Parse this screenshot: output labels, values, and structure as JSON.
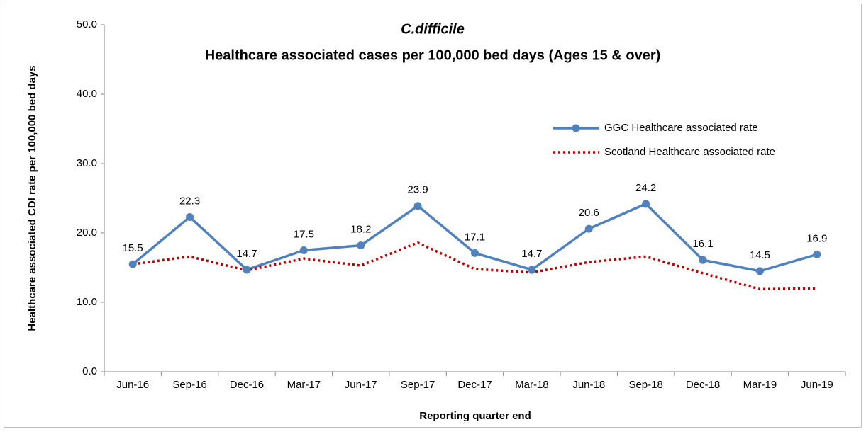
{
  "chart_data": {
    "type": "line",
    "title": "C.difficile",
    "subtitle": "Healthcare associated cases per 100,000 bed days (Ages 15 & over)",
    "x_label": "Reporting quarter end",
    "y_label": "Healthcare associated CDI rate per 100,000 bed days",
    "categories": [
      "Jun-16",
      "Sep-16",
      "Dec-16",
      "Mar-17",
      "Jun-17",
      "Sep-17",
      "Dec-17",
      "Mar-18",
      "Jun-18",
      "Sep-18",
      "Dec-18",
      "Mar-19",
      "Jun-19"
    ],
    "series": [
      {
        "name": "GGC Healthcare associated rate",
        "color": "#4f81bd",
        "style": "solid",
        "marker": "circle",
        "data_labels": true,
        "values": [
          15.5,
          22.3,
          14.7,
          17.5,
          18.2,
          23.9,
          17.1,
          14.7,
          20.6,
          24.2,
          16.1,
          14.5,
          16.9
        ]
      },
      {
        "name": "Scotland Healthcare associated rate",
        "color": "#c00000",
        "style": "dotted",
        "marker": "none",
        "data_labels": false,
        "values": [
          15.5,
          16.6,
          14.6,
          16.3,
          15.3,
          18.6,
          14.8,
          14.3,
          15.8,
          16.6,
          14.2,
          11.9,
          12.0
        ]
      }
    ],
    "ylim": [
      0,
      50
    ],
    "yticks": [
      {
        "value": 0,
        "label": "0.0"
      },
      {
        "value": 10,
        "label": "10.0"
      },
      {
        "value": 20,
        "label": "20.0"
      },
      {
        "value": 30,
        "label": "30.0"
      },
      {
        "value": 40,
        "label": "40.0"
      },
      {
        "value": 50,
        "label": "50.0"
      }
    ],
    "grid": false,
    "legend": "right"
  }
}
